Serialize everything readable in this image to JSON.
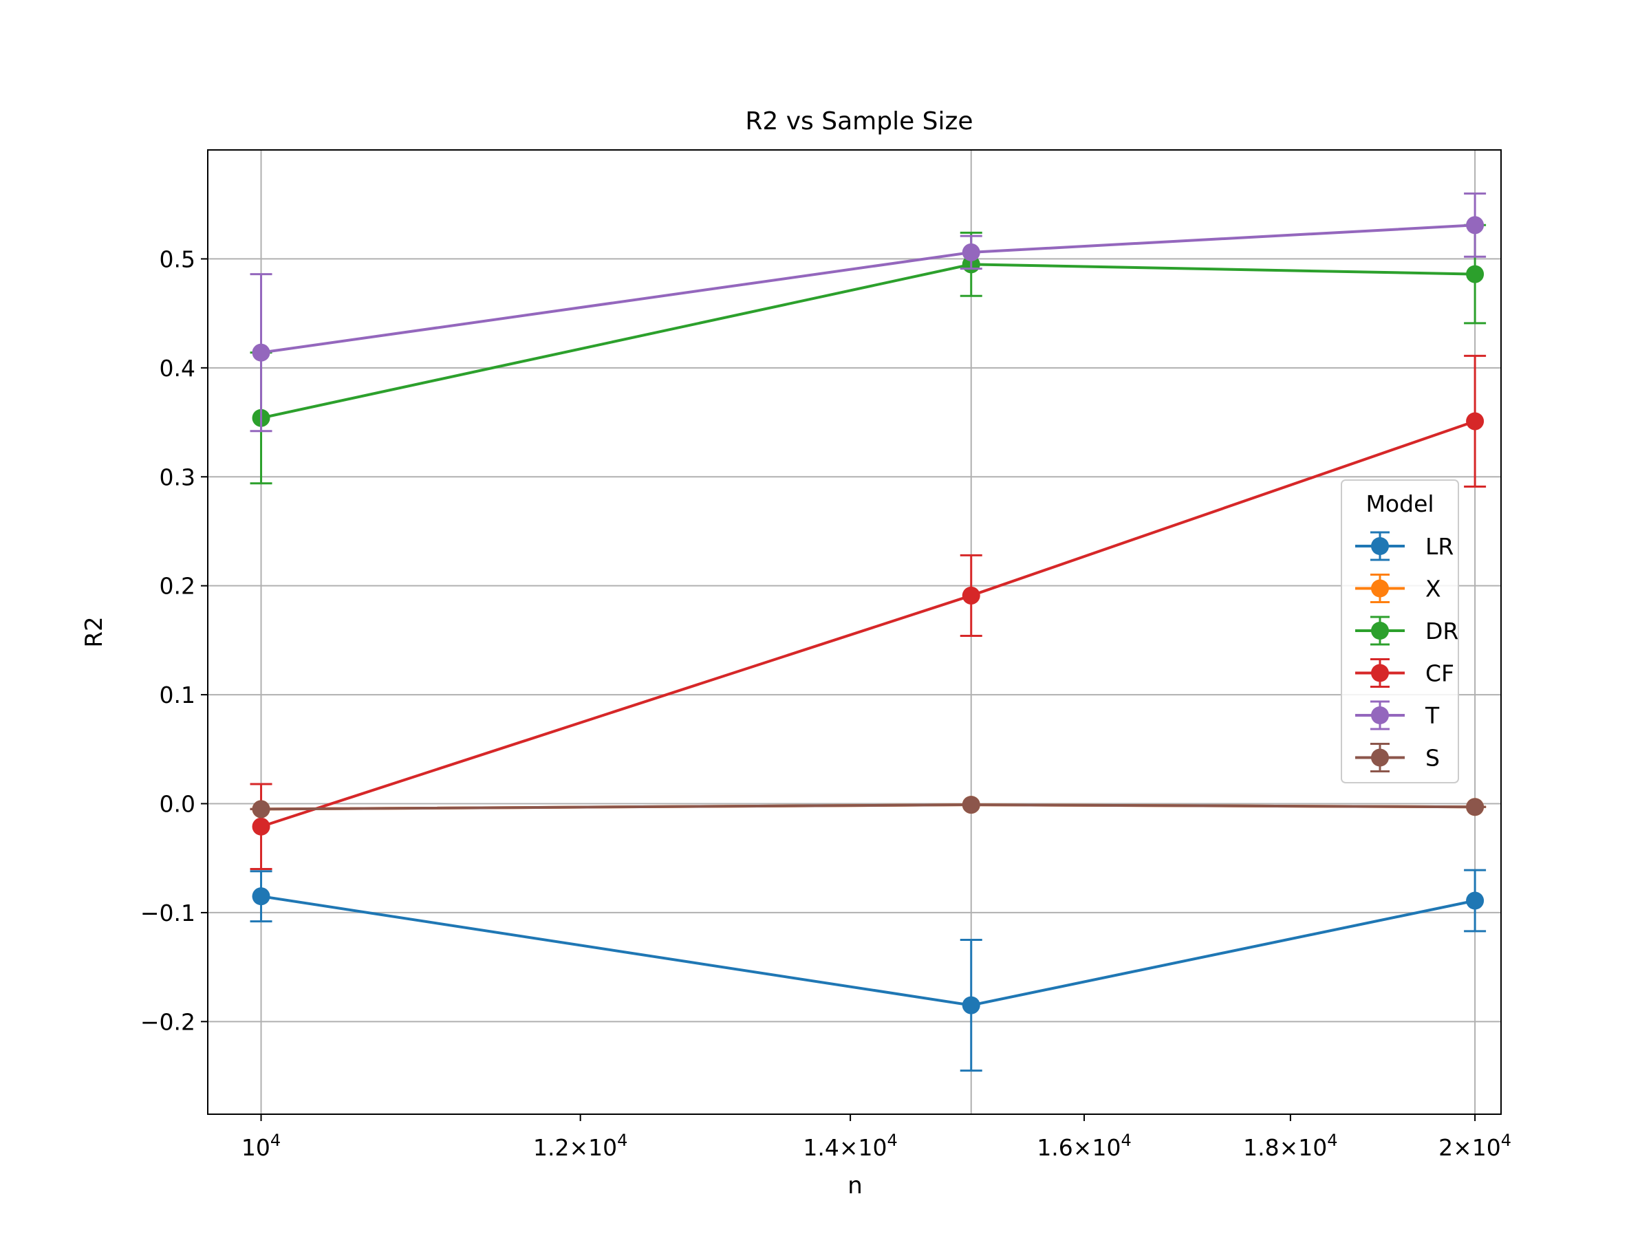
{
  "chart_data": {
    "type": "line",
    "title": "R2 vs Sample Size",
    "xlabel": "n",
    "ylabel": "R2",
    "xscale": "log",
    "xlim": [
      9700,
      20300
    ],
    "ylim": [
      -0.285,
      0.6
    ],
    "grid": true,
    "x": [
      10000,
      15000,
      20000
    ],
    "x_ticks": [
      {
        "value": 10000,
        "mantissa": "",
        "exponent": "4"
      },
      {
        "value": 12000,
        "mantissa": "1.2",
        "exponent": "4"
      },
      {
        "value": 14000,
        "mantissa": "1.4",
        "exponent": "4"
      },
      {
        "value": 16000,
        "mantissa": "1.6",
        "exponent": "4"
      },
      {
        "value": 18000,
        "mantissa": "1.8",
        "exponent": "4"
      },
      {
        "value": 20000,
        "mantissa": "2",
        "exponent": "4"
      }
    ],
    "y_ticks": [
      {
        "value": -0.2,
        "label": "−0.2"
      },
      {
        "value": -0.1,
        "label": "−0.1"
      },
      {
        "value": 0.0,
        "label": "0.0"
      },
      {
        "value": 0.1,
        "label": "0.1"
      },
      {
        "value": 0.2,
        "label": "0.2"
      },
      {
        "value": 0.3,
        "label": "0.3"
      },
      {
        "value": 0.4,
        "label": "0.4"
      },
      {
        "value": 0.5,
        "label": "0.5"
      }
    ],
    "legend": {
      "title": "Model",
      "position": "right"
    },
    "series": [
      {
        "name": "LR",
        "color": "#1f77b4",
        "values": [
          -0.085,
          -0.185,
          -0.089
        ],
        "errors": [
          0.023,
          0.06,
          0.028
        ]
      },
      {
        "name": "X",
        "color": "#ff7f0e",
        "values": [
          -0.005,
          -0.001,
          -0.003
        ],
        "errors": [
          0.0,
          0.0,
          0.0
        ]
      },
      {
        "name": "DR",
        "color": "#2ca02c",
        "values": [
          0.354,
          0.495,
          0.486
        ],
        "errors": [
          0.06,
          0.029,
          0.045
        ]
      },
      {
        "name": "CF",
        "color": "#d62728",
        "values": [
          -0.021,
          0.191,
          0.351
        ],
        "errors": [
          0.039,
          0.037,
          0.06
        ]
      },
      {
        "name": "T",
        "color": "#9467bd",
        "values": [
          0.414,
          0.506,
          0.531
        ],
        "errors": [
          0.072,
          0.015,
          0.029
        ]
      },
      {
        "name": "S",
        "color": "#8c564b",
        "values": [
          -0.005,
          -0.001,
          -0.003
        ],
        "errors": [
          0.0,
          0.0,
          0.0
        ]
      }
    ]
  }
}
